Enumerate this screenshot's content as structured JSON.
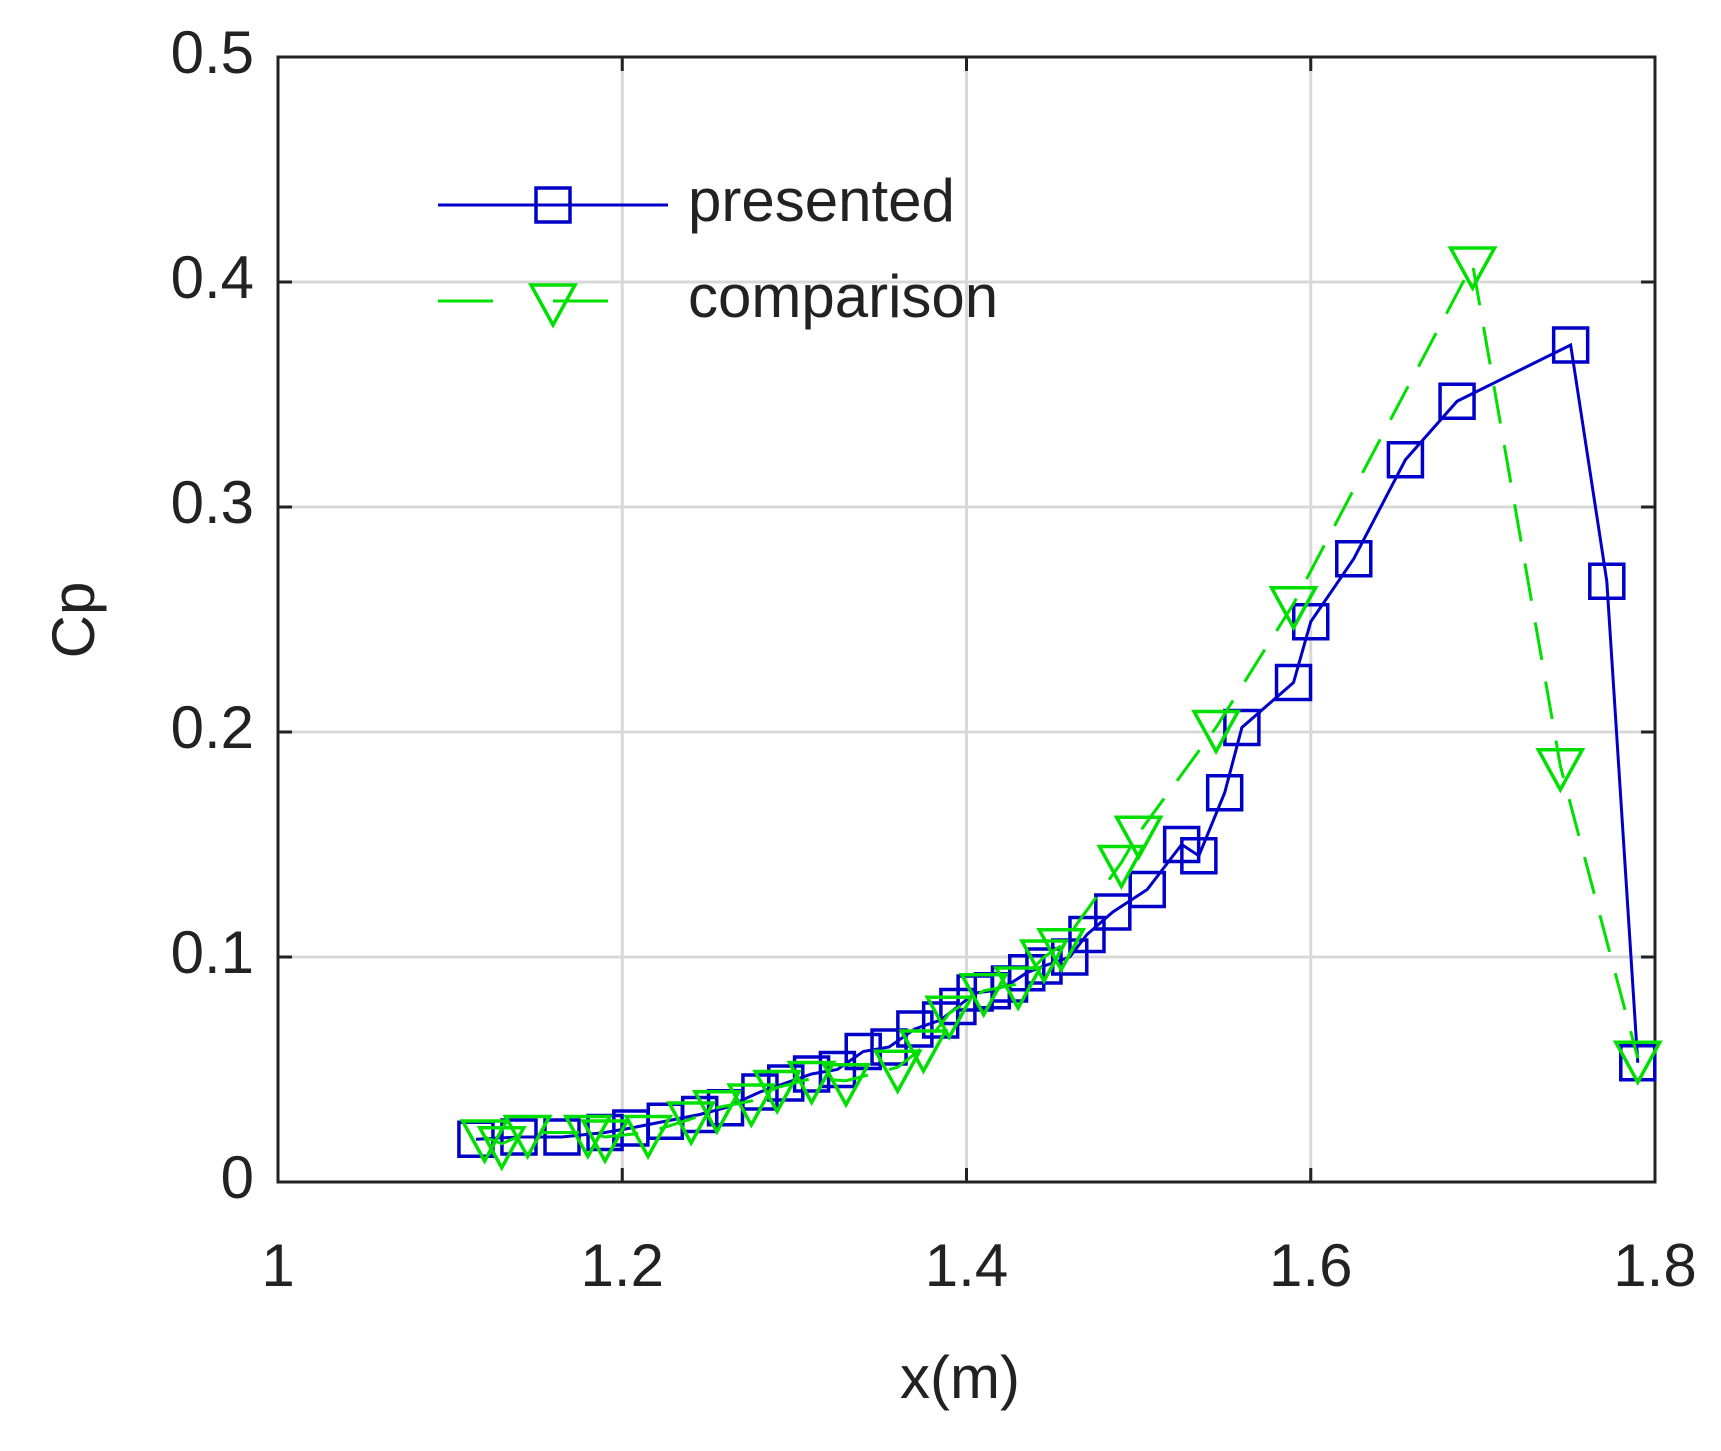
{
  "chart_data": {
    "type": "line",
    "x_label": "x(m)",
    "y_label": "Cp",
    "xlim": [
      1,
      1.8
    ],
    "xticks": [
      1,
      1.2,
      1.4,
      1.6,
      1.8
    ],
    "ylim": [
      0,
      0.5
    ],
    "yticks": [
      0,
      0.1,
      0.2,
      0.3,
      0.4,
      0.5
    ],
    "grid": true,
    "legend": "upper left",
    "series": [
      {
        "name": "presented",
        "color": "#0000c8",
        "marker": "square",
        "dash": "solid",
        "x": [
          1.115,
          1.14,
          1.165,
          1.19,
          1.205,
          1.225,
          1.245,
          1.26,
          1.28,
          1.295,
          1.31,
          1.325,
          1.34,
          1.355,
          1.37,
          1.385,
          1.395,
          1.405,
          1.415,
          1.425,
          1.435,
          1.445,
          1.46,
          1.47,
          1.485,
          1.505,
          1.525,
          1.535,
          1.55,
          1.56,
          1.59,
          1.6,
          1.625,
          1.655,
          1.685,
          1.751,
          1.772,
          1.79
        ],
        "values": [
          0.019,
          0.02,
          0.02,
          0.022,
          0.024,
          0.027,
          0.03,
          0.033,
          0.04,
          0.044,
          0.048,
          0.05,
          0.058,
          0.06,
          0.068,
          0.072,
          0.078,
          0.084,
          0.085,
          0.088,
          0.093,
          0.096,
          0.1,
          0.11,
          0.12,
          0.13,
          0.15,
          0.145,
          0.173,
          0.202,
          0.222,
          0.249,
          0.277,
          0.321,
          0.347,
          0.372,
          0.267,
          0.053
        ]
      },
      {
        "name": "comparison",
        "color": "#00e000",
        "marker": "triangle-down",
        "dash": "dashed",
        "x": [
          1.12,
          1.13,
          1.145,
          1.18,
          1.19,
          1.215,
          1.24,
          1.255,
          1.275,
          1.29,
          1.31,
          1.33,
          1.36,
          1.375,
          1.39,
          1.41,
          1.43,
          1.445,
          1.455,
          1.49,
          1.5,
          1.545,
          1.59,
          1.694,
          1.745,
          1.79
        ],
        "values": [
          0.02,
          0.017,
          0.022,
          0.022,
          0.02,
          0.022,
          0.028,
          0.033,
          0.036,
          0.042,
          0.046,
          0.045,
          0.051,
          0.06,
          0.075,
          0.085,
          0.088,
          0.1,
          0.105,
          0.142,
          0.155,
          0.202,
          0.257,
          0.408,
          0.185,
          0.055
        ]
      }
    ]
  }
}
